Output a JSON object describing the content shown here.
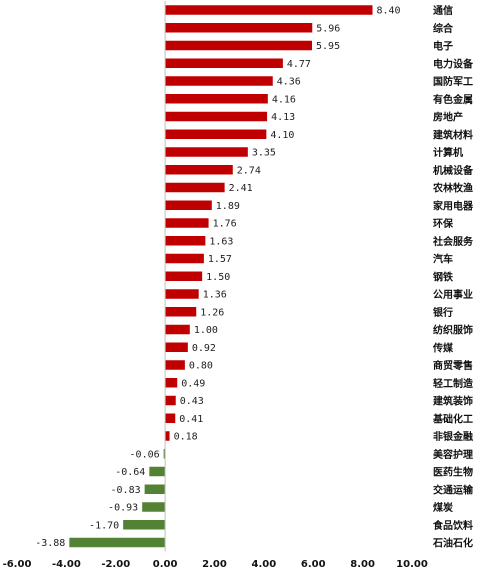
{
  "chart_data": {
    "type": "bar",
    "orientation": "horizontal",
    "categories": [
      "通信",
      "综合",
      "电子",
      "电力设备",
      "国防军工",
      "有色金属",
      "房地产",
      "建筑材料",
      "计算机",
      "机械设备",
      "农林牧渔",
      "家用电器",
      "环保",
      "社会服务",
      "汽车",
      "钢铁",
      "公用事业",
      "银行",
      "纺织服饰",
      "传媒",
      "商贸零售",
      "轻工制造",
      "建筑装饰",
      "基础化工",
      "非银金融",
      "美容护理",
      "医药生物",
      "交通运输",
      "煤炭",
      "食品饮料",
      "石油石化"
    ],
    "values": [
      8.4,
      5.96,
      5.95,
      4.77,
      4.36,
      4.16,
      4.13,
      4.1,
      3.35,
      2.74,
      2.41,
      1.89,
      1.76,
      1.63,
      1.57,
      1.5,
      1.36,
      1.26,
      1.0,
      0.92,
      0.8,
      0.49,
      0.43,
      0.41,
      0.18,
      -0.06,
      -0.64,
      -0.83,
      -0.93,
      -1.7,
      -3.88
    ],
    "value_labels": [
      "8.40",
      "5.96",
      "5.95",
      "4.77",
      "4.36",
      "4.16",
      "4.13",
      "4.10",
      "3.35",
      "2.74",
      "2.41",
      "1.89",
      "1.76",
      "1.63",
      "1.57",
      "1.50",
      "1.36",
      "1.26",
      "1.00",
      "0.92",
      "0.80",
      "0.49",
      "0.43",
      "0.41",
      "0.18",
      "-0.06",
      "-0.64",
      "-0.83",
      "-0.93",
      "-1.70",
      "-3.88"
    ],
    "xlim": [
      -6,
      10
    ],
    "xticks": [
      -6,
      -4,
      -2,
      0,
      2,
      4,
      6,
      8,
      10
    ],
    "xtick_labels": [
      "-6.00",
      "-4.00",
      "-2.00",
      "0.00",
      "2.00",
      "4.00",
      "6.00",
      "8.00",
      "10.00"
    ],
    "positive_color": "#c00000",
    "negative_color": "#548235",
    "grid": false,
    "legend": false,
    "title": "",
    "xlabel": "",
    "ylabel": ""
  }
}
